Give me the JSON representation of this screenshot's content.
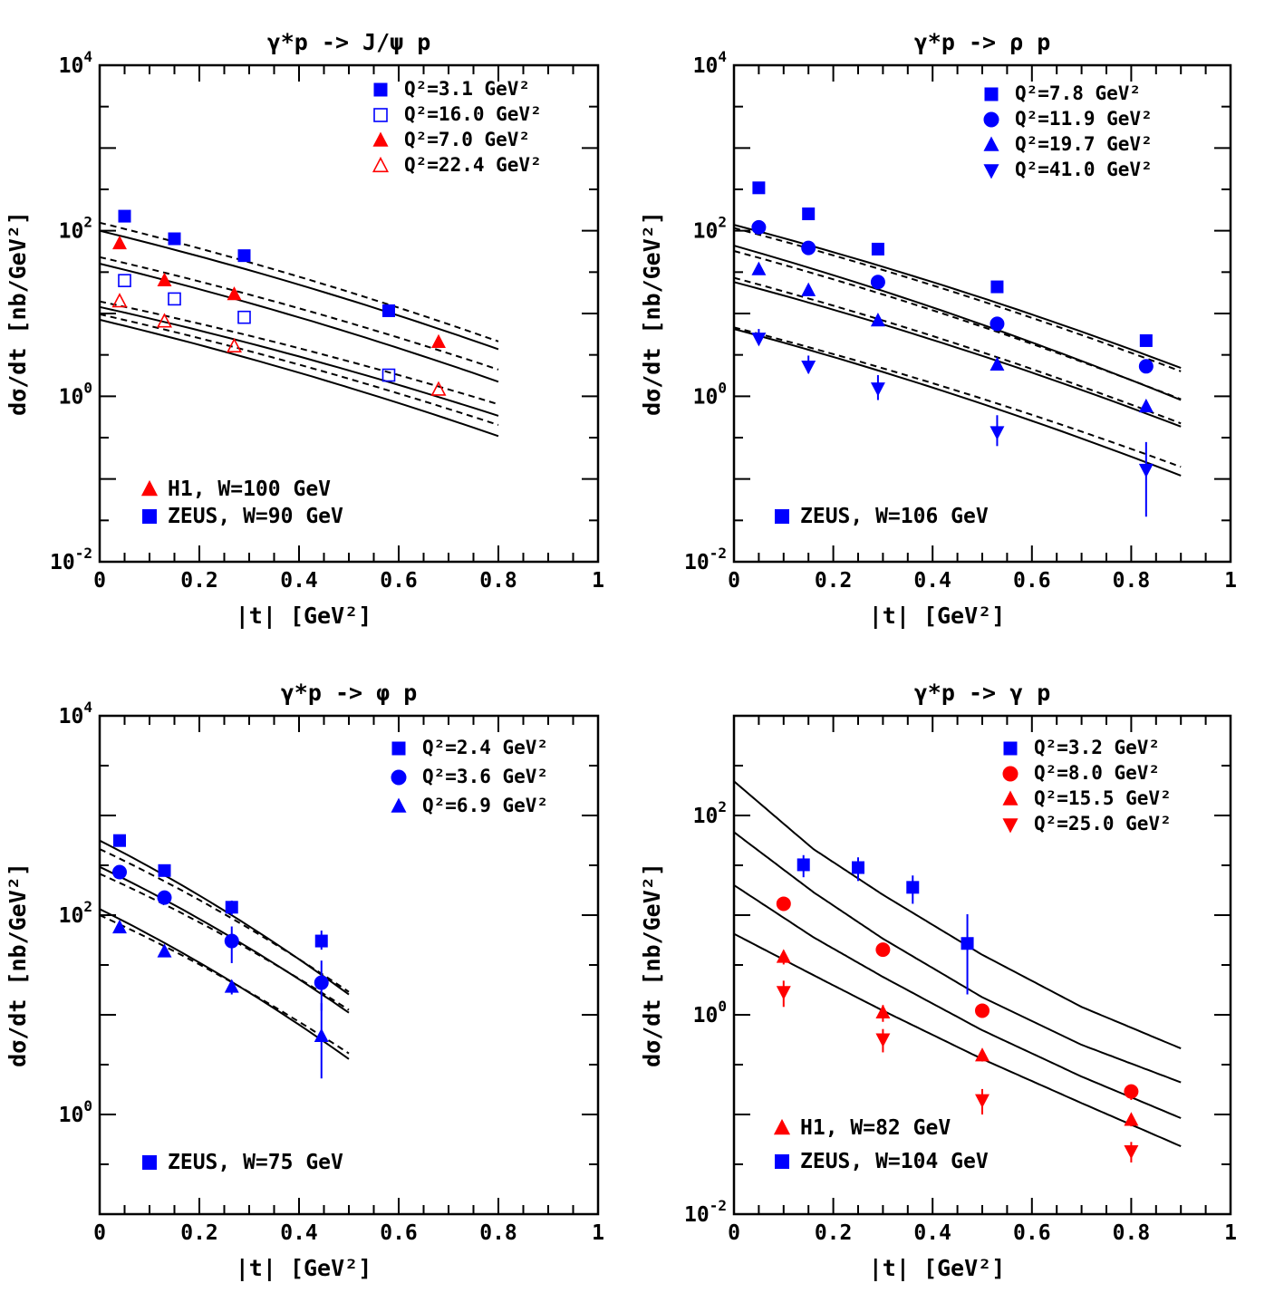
{
  "chart_data": [
    {
      "type": "scatter",
      "title": "γ*p -> J/ψ p",
      "xlabel": "|t| [GeV²]",
      "ylabel": "dσ/dt [nb/GeV²]",
      "xlim": [
        0,
        1
      ],
      "ylim": [
        0.01,
        10000
      ],
      "yscale": "log",
      "xticks": [
        "0",
        "0.2",
        "0.4",
        "0.6",
        "0.8",
        "1"
      ],
      "yticks": [
        {
          "base": "10",
          "exp": "4",
          "value": 10000
        },
        {
          "base": "10",
          "exp": "2",
          "value": 100
        },
        {
          "base": "10",
          "exp": "0",
          "value": 1
        },
        {
          "base": "10",
          "exp": "-2",
          "value": 0.01
        }
      ],
      "legend": [
        {
          "label": "Q²=3.1 GeV²",
          "marker": "square",
          "filled": true,
          "color": "#0000ff"
        },
        {
          "label": "Q²=16.0 GeV²",
          "marker": "square",
          "filled": false,
          "color": "#0000ff"
        },
        {
          "label": "Q²=7.0 GeV²",
          "marker": "triangle",
          "filled": true,
          "color": "#ff0000"
        },
        {
          "label": "Q²=22.4 GeV²",
          "marker": "triangle",
          "filled": false,
          "color": "#ff0000"
        }
      ],
      "notes": [
        {
          "label": "H1, W=100 GeV",
          "marker": "triangle",
          "color": "#ff0000"
        },
        {
          "label": "ZEUS, W=90 GeV",
          "marker": "square",
          "color": "#0000ff"
        }
      ],
      "series": [
        {
          "name": "Q²=3.1 GeV²",
          "marker": "square",
          "filled": true,
          "color": "#0000ff",
          "x": [
            0.05,
            0.15,
            0.29,
            0.58
          ],
          "y": [
            150,
            80,
            50,
            10.8
          ]
        },
        {
          "name": "Q²=16.0 GeV²",
          "marker": "square",
          "filled": false,
          "color": "#0000ff",
          "x": [
            0.05,
            0.15,
            0.29,
            0.58
          ],
          "y": [
            25,
            15,
            9,
            1.8
          ]
        },
        {
          "name": "Q²=7.0 GeV²",
          "marker": "triangle",
          "filled": true,
          "color": "#ff0000",
          "x": [
            0.04,
            0.13,
            0.27,
            0.68
          ],
          "y": [
            70,
            25,
            17,
            4.5
          ]
        },
        {
          "name": "Q²=22.4 GeV²",
          "marker": "triangle",
          "filled": false,
          "color": "#ff0000",
          "x": [
            0.04,
            0.13,
            0.27,
            0.68
          ],
          "y": [
            14,
            8,
            4,
            1.2
          ]
        }
      ],
      "curves": [
        {
          "style": "solid",
          "x": [
            0,
            0.8
          ],
          "y": [
            100,
            3.7
          ]
        },
        {
          "style": "dashed",
          "x": [
            0,
            0.8
          ],
          "y": [
            125,
            4.6
          ]
        },
        {
          "style": "solid",
          "x": [
            0,
            0.8
          ],
          "y": [
            40,
            1.5
          ]
        },
        {
          "style": "dashed",
          "x": [
            0,
            0.8
          ],
          "y": [
            48,
            2.1
          ]
        },
        {
          "style": "solid",
          "x": [
            0,
            0.8
          ],
          "y": [
            12,
            0.58
          ]
        },
        {
          "style": "dashed",
          "x": [
            0,
            0.8
          ],
          "y": [
            14,
            0.8
          ]
        },
        {
          "style": "solid",
          "x": [
            0,
            0.8
          ],
          "y": [
            8.4,
            0.33
          ]
        },
        {
          "style": "dashed",
          "x": [
            0,
            0.8
          ],
          "y": [
            9.8,
            0.45
          ]
        }
      ]
    },
    {
      "type": "scatter",
      "title": "γ*p -> ρ p",
      "xlabel": "|t| [GeV²]",
      "ylabel": "dσ/dt [nb/GeV²]",
      "xlim": [
        0,
        1
      ],
      "ylim": [
        0.01,
        10000
      ],
      "yscale": "log",
      "xticks": [
        "0",
        "0.2",
        "0.4",
        "0.6",
        "0.8",
        "1"
      ],
      "yticks": [
        {
          "base": "10",
          "exp": "4",
          "value": 10000
        },
        {
          "base": "10",
          "exp": "2",
          "value": 100
        },
        {
          "base": "10",
          "exp": "0",
          "value": 1
        },
        {
          "base": "10",
          "exp": "-2",
          "value": 0.01
        }
      ],
      "legend": [
        {
          "label": "Q²=7.8 GeV²",
          "marker": "square",
          "filled": true,
          "color": "#0000ff"
        },
        {
          "label": "Q²=11.9 GeV²",
          "marker": "circle",
          "filled": true,
          "color": "#0000ff"
        },
        {
          "label": "Q²=19.7 GeV²",
          "marker": "triangle",
          "filled": true,
          "color": "#0000ff"
        },
        {
          "label": "Q²=41.0 GeV²",
          "marker": "triangle-down",
          "filled": true,
          "color": "#0000ff"
        }
      ],
      "notes": [
        {
          "label": "ZEUS, W=106 GeV",
          "marker": "square",
          "color": "#0000ff"
        }
      ],
      "series": [
        {
          "name": "Q²=7.8 GeV²",
          "marker": "square",
          "filled": true,
          "color": "#0000ff",
          "x": [
            0.05,
            0.15,
            0.29,
            0.53,
            0.83
          ],
          "y": [
            330,
            160,
            60,
            21,
            4.7
          ]
        },
        {
          "name": "Q²=11.9 GeV²",
          "marker": "circle",
          "filled": true,
          "color": "#0000ff",
          "x": [
            0.05,
            0.15,
            0.29,
            0.53,
            0.83
          ],
          "y": [
            110,
            62,
            24,
            7.5,
            2.3
          ]
        },
        {
          "name": "Q²=19.7 GeV²",
          "marker": "triangle",
          "filled": true,
          "color": "#0000ff",
          "x": [
            0.05,
            0.15,
            0.29,
            0.53,
            0.83
          ],
          "y": [
            34,
            19,
            8.2,
            2.4,
            0.75
          ]
        },
        {
          "name": "Q²=41.0 GeV²",
          "marker": "triangle-down",
          "filled": true,
          "color": "#0000ff",
          "x": [
            0.05,
            0.15,
            0.29,
            0.53,
            0.83
          ],
          "y": [
            5,
            2.3,
            1.25,
            0.37,
            0.13
          ],
          "yerr": [
            [
              0.7,
              0.4,
              0.35,
              0.12,
              0.095
            ],
            [
              1.5,
              0.8,
              0.55,
              0.22,
              0.15
            ]
          ]
        }
      ],
      "curves": [
        {
          "style": "solid",
          "x": [
            0,
            0.9
          ],
          "y": [
            118,
            2.2
          ]
        },
        {
          "style": "dashed",
          "x": [
            0,
            0.9
          ],
          "y": [
            108,
            2.0
          ]
        },
        {
          "style": "solid",
          "x": [
            0,
            0.9
          ],
          "y": [
            66,
            0.9
          ]
        },
        {
          "style": "dashed",
          "x": [
            0,
            0.9
          ],
          "y": [
            57,
            0.92
          ]
        },
        {
          "style": "solid",
          "x": [
            0,
            0.9
          ],
          "y": [
            24,
            0.43
          ]
        },
        {
          "style": "dashed",
          "x": [
            0,
            0.9
          ],
          "y": [
            27,
            0.47
          ]
        },
        {
          "style": "solid",
          "x": [
            0,
            0.9
          ],
          "y": [
            6.5,
            0.11
          ]
        },
        {
          "style": "dashed",
          "x": [
            0,
            0.9
          ],
          "y": [
            6.8,
            0.14
          ]
        }
      ]
    },
    {
      "type": "scatter",
      "title": "γ*p -> φ p",
      "xlabel": "|t| [GeV²]",
      "ylabel": "dσ/dt [nb/GeV²]",
      "xlim": [
        0,
        1
      ],
      "ylim": [
        0.1,
        10000
      ],
      "yscale": "log",
      "xticks": [
        "0",
        "0.2",
        "0.4",
        "0.6",
        "0.8",
        "1"
      ],
      "yticks": [
        {
          "base": "10",
          "exp": "4",
          "value": 10000
        },
        {
          "base": "10",
          "exp": "2",
          "value": 100
        },
        {
          "base": "10",
          "exp": "0",
          "value": 1
        }
      ],
      "legend": [
        {
          "label": "Q²=2.4 GeV²",
          "marker": "square",
          "filled": true,
          "color": "#0000ff"
        },
        {
          "label": "Q²=3.6 GeV²",
          "marker": "circle",
          "filled": true,
          "color": "#0000ff"
        },
        {
          "label": "Q²=6.9 GeV²",
          "marker": "triangle",
          "filled": true,
          "color": "#0000ff"
        }
      ],
      "notes": [
        {
          "label": "ZEUS, W=75 GeV",
          "marker": "square",
          "color": "#0000ff"
        }
      ],
      "series": [
        {
          "name": "Q²=2.4 GeV²",
          "marker": "square",
          "filled": true,
          "color": "#0000ff",
          "x": [
            0.04,
            0.13,
            0.265,
            0.445
          ],
          "y": [
            560,
            280,
            120,
            55
          ],
          "yerr": [
            [
              0,
              0,
              20,
              10
            ],
            [
              0,
              0,
              20,
              15
            ]
          ]
        },
        {
          "name": "Q²=3.6 GeV²",
          "marker": "circle",
          "filled": true,
          "color": "#0000ff",
          "x": [
            0.04,
            0.13,
            0.265,
            0.445
          ],
          "y": [
            270,
            150,
            55,
            21
          ],
          "yerr": [
            [
              0,
              0,
              22,
              10
            ],
            [
              0,
              0,
              22,
              14
            ]
          ]
        },
        {
          "name": "Q²=6.9 GeV²",
          "marker": "triangle",
          "filled": true,
          "color": "#0000ff",
          "x": [
            0.04,
            0.13,
            0.265,
            0.445
          ],
          "y": [
            75,
            43,
            19,
            6.1
          ],
          "yerr": [
            [
              0,
              0,
              3,
              3.8
            ],
            [
              0,
              0,
              3,
              7
            ]
          ]
        }
      ],
      "curves": [
        {
          "style": "solid",
          "x": [
            0,
            0.5
          ],
          "y": [
            560,
            16
          ]
        },
        {
          "style": "dashed",
          "x": [
            0,
            0.5
          ],
          "y": [
            460,
            17
          ]
        },
        {
          "style": "solid",
          "x": [
            0,
            0.5
          ],
          "y": [
            305,
            10.5
          ]
        },
        {
          "style": "dashed",
          "x": [
            0,
            0.5
          ],
          "y": [
            260,
            11.2
          ]
        },
        {
          "style": "solid",
          "x": [
            0,
            0.5
          ],
          "y": [
            115,
            3.6
          ]
        },
        {
          "style": "dashed",
          "x": [
            0,
            0.5
          ],
          "y": [
            100,
            4.1
          ]
        }
      ]
    },
    {
      "type": "scatter",
      "title": "γ*p -> γ p",
      "xlabel": "|t| [GeV²]",
      "ylabel": "dσ/dt [nb/GeV²]",
      "xlim": [
        0,
        1
      ],
      "ylim": [
        0.01,
        1000
      ],
      "yscale": "log",
      "xticks": [
        "0",
        "0.2",
        "0.4",
        "0.6",
        "0.8",
        "1"
      ],
      "yticks": [
        {
          "base": "10",
          "exp": "2",
          "value": 100
        },
        {
          "base": "10",
          "exp": "0",
          "value": 1
        },
        {
          "base": "10",
          "exp": "-2",
          "value": 0.01
        }
      ],
      "legend": [
        {
          "label": "Q²=3.2 GeV²",
          "marker": "square",
          "filled": true,
          "color": "#0000ff"
        },
        {
          "label": "Q²=8.0 GeV²",
          "marker": "circle",
          "filled": true,
          "color": "#ff0000"
        },
        {
          "label": "Q²=15.5 GeV²",
          "marker": "triangle",
          "filled": true,
          "color": "#ff0000"
        },
        {
          "label": "Q²=25.0 GeV²",
          "marker": "triangle-down",
          "filled": true,
          "color": "#ff0000"
        }
      ],
      "notes": [
        {
          "label": "H1, W=82 GeV",
          "marker": "triangle",
          "color": "#ff0000"
        },
        {
          "label": "ZEUS, W=104 GeV",
          "marker": "square",
          "color": "#0000ff"
        }
      ],
      "series": [
        {
          "name": "Q²=3.2 GeV²",
          "marker": "square",
          "filled": true,
          "color": "#0000ff",
          "x": [
            0.14,
            0.25,
            0.36,
            0.47
          ],
          "y": [
            32,
            30,
            19,
            5.2
          ],
          "yerr": [
            [
              8,
              8,
              6,
              3.6
            ],
            [
              8,
              8,
              6,
              5
            ]
          ]
        },
        {
          "name": "Q²=8.0 GeV²",
          "marker": "circle",
          "filled": true,
          "color": "#ff0000",
          "x": [
            0.1,
            0.3,
            0.5,
            0.8
          ],
          "y": [
            13,
            4.5,
            1.1,
            0.17
          ],
          "yerr": [
            [
              0,
              0.4,
              0.15,
              0.03
            ],
            [
              0,
              0.4,
              0.15,
              0.03
            ]
          ]
        },
        {
          "name": "Q²=15.5 GeV²",
          "marker": "triangle",
          "filled": true,
          "color": "#ff0000",
          "x": [
            0.1,
            0.3,
            0.5,
            0.8
          ],
          "y": [
            3.8,
            1.05,
            0.39,
            0.088
          ],
          "yerr": [
            [
              0.6,
              0.2,
              0.05,
              0.012
            ],
            [
              0.6,
              0.2,
              0.05,
              0.012
            ]
          ]
        },
        {
          "name": "Q²=25.0 GeV²",
          "marker": "triangle-down",
          "filled": true,
          "color": "#ff0000",
          "x": [
            0.1,
            0.3,
            0.5,
            0.8
          ],
          "y": [
            1.7,
            0.57,
            0.14,
            0.043
          ],
          "yerr": [
            [
              0.5,
              0.15,
              0.04,
              0.01
            ],
            [
              0.5,
              0.15,
              0.04,
              0.01
            ]
          ]
        }
      ],
      "curves": [
        {
          "style": "solid",
          "x": [
            0,
            0.16,
            0.3,
            0.5,
            0.7,
            0.9
          ],
          "y": [
            220,
            46,
            16,
            4.0,
            1.2,
            0.46
          ]
        },
        {
          "style": "solid",
          "x": [
            0,
            0.16,
            0.3,
            0.5,
            0.7,
            0.9
          ],
          "y": [
            68,
            17,
            5.8,
            1.5,
            0.5,
            0.21
          ]
        },
        {
          "style": "solid",
          "x": [
            0,
            0.16,
            0.3,
            0.5,
            0.7,
            0.9
          ],
          "y": [
            20,
            6.0,
            2.4,
            0.7,
            0.24,
            0.092
          ]
        },
        {
          "style": "solid",
          "x": [
            0,
            0.16,
            0.3,
            0.5,
            0.7,
            0.9
          ],
          "y": [
            6.5,
            2.5,
            1.1,
            0.36,
            0.13,
            0.048
          ]
        }
      ]
    }
  ]
}
